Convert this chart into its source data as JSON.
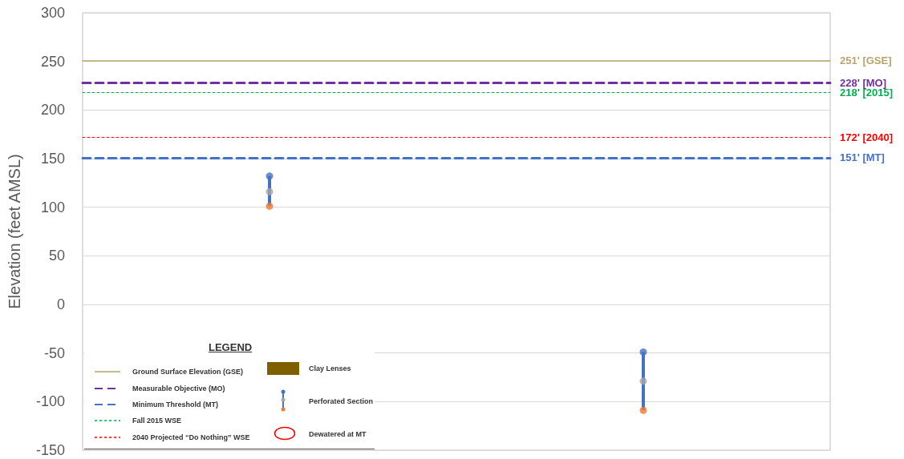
{
  "chart_data": {
    "type": "bar",
    "ylabel": "Elevation (feet AMSL)",
    "categories": [
      null,
      null
    ],
    "ylim": [
      -150,
      300
    ],
    "yticks": [
      -150,
      -100,
      -50,
      0,
      50,
      100,
      150,
      200,
      250,
      300
    ],
    "grid": "y",
    "series": [
      {
        "color": "#4472c4",
        "base": [
          101,
          -109
        ],
        "values": [
          31,
          60
        ]
      },
      {
        "type": "scatter",
        "color": "#4472c4",
        "values": [
          132,
          -49
        ]
      },
      {
        "type": "scatter",
        "color": "#a5a5a5",
        "values": [
          116,
          -79
        ]
      },
      {
        "type": "scatter",
        "color": "#ed7d31",
        "values": [
          101,
          -109
        ]
      }
    ],
    "marker": "circle",
    "ref_lines": [
      {
        "axis": "y",
        "value": 251,
        "label": "251' [GSE]",
        "color": "#b8a46a",
        "line_style": "solid"
      },
      {
        "axis": "y",
        "value": 228,
        "label": "228' [MO]",
        "color": "#7030a0",
        "line_style": "dashed"
      },
      {
        "axis": "y",
        "value": 151,
        "label": "151' [MT]",
        "color": "#4472c4",
        "line_style": "dashed"
      },
      {
        "axis": "y",
        "value": 218,
        "label": "218' [2015]",
        "color": "#00b050",
        "line_style": "dotted"
      },
      {
        "axis": "y",
        "value": 172,
        "label": "172' [2040]",
        "color": "#ff0000",
        "line_style": "dotted"
      }
    ],
    "annotations": [
      "LEGEND",
      "Ground Surface Elevation (GSE)",
      "Measurable Objective (MO)",
      "Minimum Threshold (MT)",
      "Fall 2015 WSE",
      "2040 Projected “Do Nothing” WSE",
      "Clay Lenses",
      "Perforated Section",
      "Dewatered at MT"
    ]
  }
}
